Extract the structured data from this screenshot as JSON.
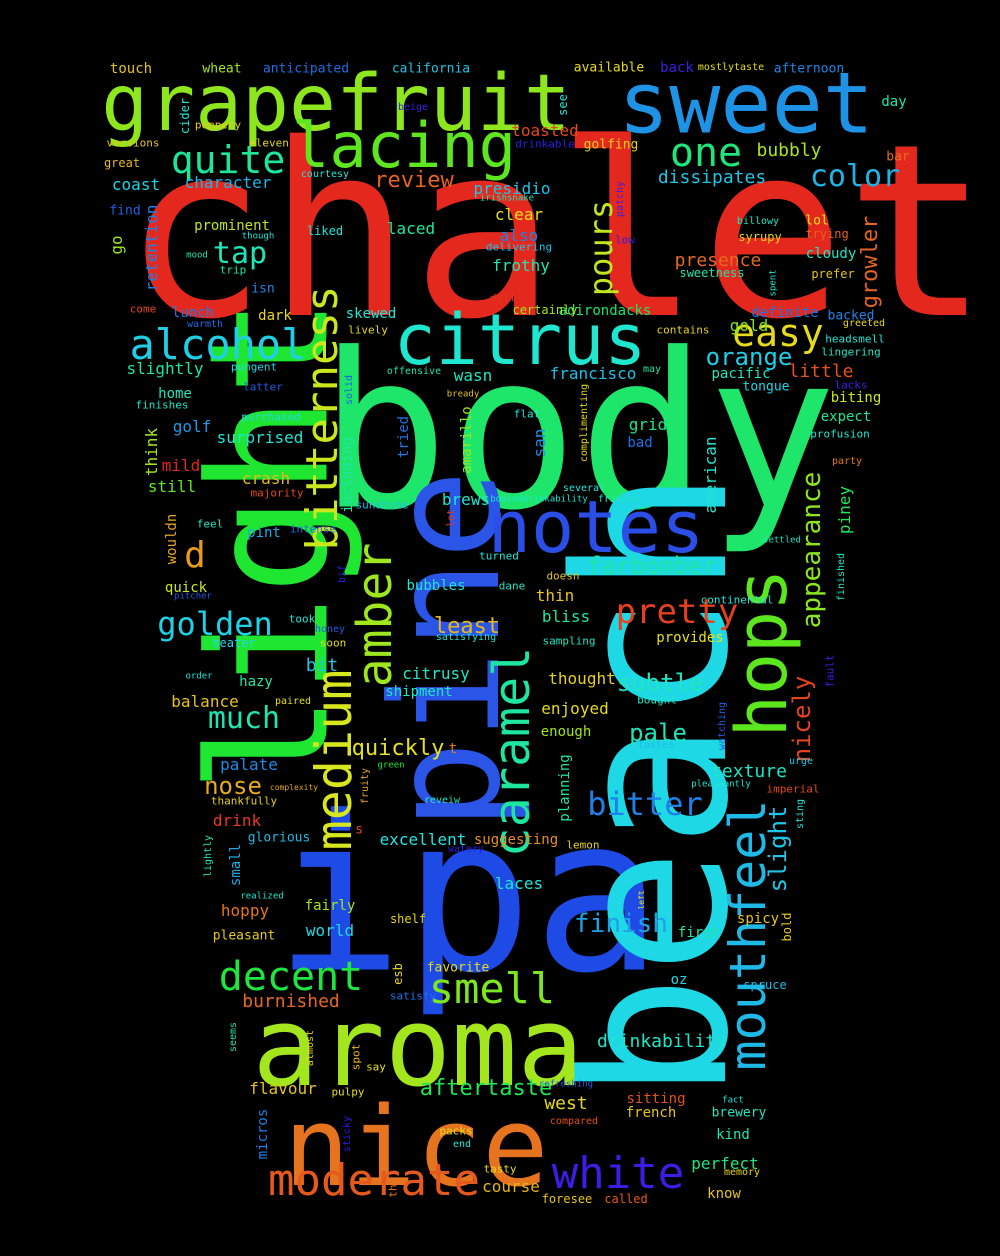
{
  "word_cloud": {
    "background": "#000000",
    "words": [
      {
        "text": "chalet",
        "color": "#e5281e"
      },
      {
        "text": "body",
        "color": "#1ee66a"
      },
      {
        "text": "ipa",
        "color": "#1e4be5"
      },
      {
        "text": "beach",
        "color": "#1ed8e6"
      },
      {
        "text": "light",
        "color": "#1ee631"
      },
      {
        "text": "pine",
        "color": "#2b55e6"
      },
      {
        "text": "aroma",
        "color": "#a4e61e"
      },
      {
        "text": "nice",
        "color": "#e6731e"
      },
      {
        "text": "sweet",
        "color": "#1e93e6"
      },
      {
        "text": "grapefruit",
        "color": "#8ee61e"
      },
      {
        "text": "notes",
        "color": "#2b4fe6"
      },
      {
        "text": "citrus",
        "color": "#1ee6cf"
      },
      {
        "text": "hops",
        "color": "#5be61e"
      },
      {
        "text": "lacing",
        "color": "#5ee61e"
      },
      {
        "text": "medium",
        "color": "#d8e61e"
      },
      {
        "text": "caramel",
        "color": "#1ee69e"
      },
      {
        "text": "mouthfeel",
        "color": "#1eb9e6"
      },
      {
        "text": "amber",
        "color": "#9ee61e"
      },
      {
        "text": "bitterness",
        "color": "#cce61e"
      },
      {
        "text": "alcohol",
        "color": "#1ecfe6"
      },
      {
        "text": "moderate",
        "color": "#e6591e"
      },
      {
        "text": "white",
        "color": "#3a1ee6"
      },
      {
        "text": "decent",
        "color": "#1ee63f"
      },
      {
        "text": "smell",
        "color": "#7ce61e"
      },
      {
        "text": "quite",
        "color": "#1ee699"
      },
      {
        "text": "one",
        "color": "#1ee67a"
      },
      {
        "text": "easy",
        "color": "#e6da1e"
      },
      {
        "text": "pretty",
        "color": "#e6411e"
      },
      {
        "text": "golden",
        "color": "#1ed1e6"
      },
      {
        "text": "bitter",
        "color": "#1e81e6"
      },
      {
        "text": "d",
        "color": "#e69b1e"
      },
      {
        "text": "much",
        "color": "#1ee6b0"
      },
      {
        "text": "tap",
        "color": "#1ee6b7"
      },
      {
        "text": "pours",
        "color": "#bfe61e"
      },
      {
        "text": "appearance",
        "color": "#8ce61e"
      },
      {
        "text": "color",
        "color": "#1eb4e6"
      },
      {
        "text": "farbomber",
        "color": "#1ee6a6"
      },
      {
        "text": "finish",
        "color": "#1ea2e6"
      },
      {
        "text": "subtle",
        "color": "#1ee6bf"
      },
      {
        "text": "pale",
        "color": "#1ee6ba"
      },
      {
        "text": "nose",
        "color": "#e6ac1e"
      },
      {
        "text": "orange",
        "color": "#1ecde6"
      },
      {
        "text": "nicely",
        "color": "#e6441e"
      },
      {
        "text": "slight",
        "color": "#1ec5e6"
      },
      {
        "text": "aftertaste",
        "color": "#1ee654"
      },
      {
        "text": "growler",
        "color": "#e6651e"
      },
      {
        "text": "review",
        "color": "#e6621e"
      },
      {
        "text": "least",
        "color": "#e6b61e"
      },
      {
        "text": "quickly",
        "color": "#e6e11e"
      },
      {
        "text": "drinkability",
        "color": "#1ee6ca"
      },
      {
        "text": "west",
        "color": "#e6d81e"
      },
      {
        "text": "texture",
        "color": "#1ee6c2"
      },
      {
        "text": "burnished",
        "color": "#e6681e"
      },
      {
        "text": "presence",
        "color": "#e6691e"
      },
      {
        "text": "little",
        "color": "#e6501e"
      },
      {
        "text": "dissipates",
        "color": "#1ec4e6"
      },
      {
        "text": "bubbly",
        "color": "#a9e61e"
      },
      {
        "text": "coast",
        "color": "#1ed5e6"
      },
      {
        "text": "character",
        "color": "#1eb4e6"
      },
      {
        "text": "toasted",
        "color": "#e6491e"
      },
      {
        "text": "presidio",
        "color": "#1ec3e6"
      },
      {
        "text": "frothy",
        "color": "#1ee6b5"
      },
      {
        "text": "clear",
        "color": "#e6e31e"
      },
      {
        "text": "also",
        "color": "#1e83e6"
      },
      {
        "text": "laced",
        "color": "#1ee69e"
      },
      {
        "text": "prominent",
        "color": "#bce61e"
      },
      {
        "text": "go",
        "color": "#a0e61e"
      },
      {
        "text": "retention",
        "color": "#1e80e6"
      },
      {
        "text": "skewed",
        "color": "#1ee6d9"
      },
      {
        "text": "lunch",
        "color": "#1e79e6"
      },
      {
        "text": "dark",
        "color": "#e6d51e"
      },
      {
        "text": "slightly",
        "color": "#1ee6a1"
      },
      {
        "text": "gold",
        "color": "#7be61e"
      },
      {
        "text": "definite",
        "color": "#1e73e6"
      },
      {
        "text": "cloudy",
        "color": "#1ee6c9"
      },
      {
        "text": "wasn",
        "color": "#1ee6c4"
      },
      {
        "text": "francisco",
        "color": "#1ec0e6"
      },
      {
        "text": "adirondacks",
        "color": "#1ee666"
      },
      {
        "text": "pacific",
        "color": "#1ee6bf"
      },
      {
        "text": "home",
        "color": "#1ee6bb"
      },
      {
        "text": "golf",
        "color": "#1e97e6"
      },
      {
        "text": "surprised",
        "color": "#1ee6d5"
      },
      {
        "text": "think",
        "color": "#a4e61e"
      },
      {
        "text": "mild",
        "color": "#e6251e"
      },
      {
        "text": "still",
        "color": "#5ee61e"
      },
      {
        "text": "crash",
        "color": "#e6b91e"
      },
      {
        "text": "grid",
        "color": "#1ee688"
      },
      {
        "text": "bad",
        "color": "#1e72e6"
      },
      {
        "text": "expect",
        "color": "#1ee68d"
      },
      {
        "text": "biting",
        "color": "#cfe61e"
      },
      {
        "text": "american",
        "color": "#1ee6d0"
      },
      {
        "text": "piney",
        "color": "#1ee658"
      },
      {
        "text": "brews",
        "color": "#1ee6ce"
      },
      {
        "text": "including",
        "color": "#1ee6a0"
      },
      {
        "text": "tried",
        "color": "#1e75e6"
      },
      {
        "text": "amarillo",
        "color": "#97e61e"
      },
      {
        "text": "san",
        "color": "#1e8de6"
      },
      {
        "text": "wouldn",
        "color": "#e6a41e"
      },
      {
        "text": "pint",
        "color": "#1ea9e6"
      },
      {
        "text": "quick",
        "color": "#cce61e"
      },
      {
        "text": "thin",
        "color": "#e6c61e"
      },
      {
        "text": "bliss",
        "color": "#1ee69e"
      },
      {
        "text": "bubbles",
        "color": "#1ee6d3"
      },
      {
        "text": "bit",
        "color": "#1ec6e6"
      },
      {
        "text": "citrusy",
        "color": "#1ee6c5"
      },
      {
        "text": "balance",
        "color": "#e6c21e"
      },
      {
        "text": "hazy",
        "color": "#1ee6a5"
      },
      {
        "text": "shipment",
        "color": "#1ee6c0"
      },
      {
        "text": "enjoyed",
        "color": "#e6d91e"
      },
      {
        "text": "thought",
        "color": "#e6d11e"
      },
      {
        "text": "provides",
        "color": "#e6e11e"
      },
      {
        "text": "enough",
        "color": "#9ee61e"
      },
      {
        "text": "palate",
        "color": "#1e8be6"
      },
      {
        "text": "drink",
        "color": "#e6391e"
      },
      {
        "text": "small",
        "color": "#1ea9e6"
      },
      {
        "text": "hoppy",
        "color": "#e6731e"
      },
      {
        "text": "excellent",
        "color": "#1ee6e3"
      },
      {
        "text": "suggesting",
        "color": "#e68f1e"
      },
      {
        "text": "planning",
        "color": "#1ee69c"
      },
      {
        "text": "laces",
        "color": "#1ee6d5"
      },
      {
        "text": "fairly",
        "color": "#a5e61e"
      },
      {
        "text": "world",
        "color": "#1ed9e6"
      },
      {
        "text": "pleasant",
        "color": "#e6ca1e"
      },
      {
        "text": "flavour",
        "color": "#e6c21e"
      },
      {
        "text": "micros",
        "color": "#1e82e6"
      },
      {
        "text": "sitting",
        "color": "#e6501e"
      },
      {
        "text": "french",
        "color": "#e6c51e"
      },
      {
        "text": "brewery",
        "color": "#1ee6c3"
      },
      {
        "text": "kind",
        "color": "#1ee6b1"
      },
      {
        "text": "perfect",
        "color": "#1ee67a"
      },
      {
        "text": "course",
        "color": "#e6b41e"
      },
      {
        "text": "know",
        "color": "#e6c11e"
      },
      {
        "text": "first",
        "color": "#1ee6a4"
      },
      {
        "text": "spicy",
        "color": "#e6c31e"
      },
      {
        "text": "bold",
        "color": "#e6c61e"
      },
      {
        "text": "oz",
        "color": "#1ed6e6"
      },
      {
        "text": "spruce",
        "color": "#1ebce6"
      },
      {
        "text": "favorite",
        "color": "#e6da1e"
      },
      {
        "text": "satisfy",
        "color": "#1e74e6"
      },
      {
        "text": "esb",
        "color": "#e6d91e"
      },
      {
        "text": "shelf",
        "color": "#e6d51e"
      },
      {
        "text": "touch",
        "color": "#e6c11e"
      },
      {
        "text": "wheat",
        "color": "#a1e61e"
      },
      {
        "text": "anticipated",
        "color": "#1e6ee6"
      },
      {
        "text": "california",
        "color": "#1ec3e6"
      },
      {
        "text": "available",
        "color": "#e6da1e"
      },
      {
        "text": "back",
        "color": "#3a1ee6"
      },
      {
        "text": "mostlytaste",
        "color": "#e6de1e"
      },
      {
        "text": "afternoon",
        "color": "#1e84e6"
      },
      {
        "text": "day",
        "color": "#1ee6b0"
      },
      {
        "text": "bar",
        "color": "#e66c1e"
      },
      {
        "text": "cider",
        "color": "#1ee6d3"
      },
      {
        "text": "see",
        "color": "#1ee6d3"
      },
      {
        "text": "peppery",
        "color": "#e6c91e"
      },
      {
        "text": "versions",
        "color": "#e6c41e"
      },
      {
        "text": "eleven",
        "color": "#e6d61e"
      },
      {
        "text": "drinkable",
        "color": "#2a1ee6"
      },
      {
        "text": "golfing",
        "color": "#e6d21e"
      },
      {
        "text": "great",
        "color": "#e6b81e"
      },
      {
        "text": "courtesy",
        "color": "#1ee6d6"
      },
      {
        "text": "irishsnake",
        "color": "#1ee6b8"
      },
      {
        "text": "beige",
        "color": "#3c1ee6"
      },
      {
        "text": "find",
        "color": "#1e62e6"
      },
      {
        "text": "though",
        "color": "#1ee6de"
      },
      {
        "text": "liked",
        "color": "#1ee6d9"
      },
      {
        "text": "delivering",
        "color": "#1ec3e6"
      },
      {
        "text": "patchy",
        "color": "#3a1ee6"
      },
      {
        "text": "low",
        "color": "#2d1ee6"
      },
      {
        "text": "billowy",
        "color": "#1ee6c1"
      },
      {
        "text": "trying",
        "color": "#e6631e"
      },
      {
        "text": "lol",
        "color": "#e6e11e"
      },
      {
        "text": "syrupy",
        "color": "#e6d71e"
      },
      {
        "text": "mood",
        "color": "#1ee6b3"
      },
      {
        "text": "trip",
        "color": "#1ee6a9"
      },
      {
        "text": "sweetness",
        "color": "#1ee6ab"
      },
      {
        "text": "prefer",
        "color": "#e6c11e"
      },
      {
        "text": "spent",
        "color": "#1ee6d3"
      },
      {
        "text": "isn",
        "color": "#1e86e6"
      },
      {
        "text": "dull",
        "color": "#e6361e"
      },
      {
        "text": "certainly",
        "color": "#a4e61e"
      },
      {
        "text": "backed",
        "color": "#1e84e6"
      },
      {
        "text": "greeted",
        "color": "#e6d91e"
      },
      {
        "text": "come",
        "color": "#e6461e"
      },
      {
        "text": "warmth",
        "color": "#1e6de6"
      },
      {
        "text": "lively",
        "color": "#e6da1e"
      },
      {
        "text": "contains",
        "color": "#e6d01e"
      },
      {
        "text": "headsmell",
        "color": "#1ee6d9"
      },
      {
        "text": "lingering",
        "color": "#1ee6c4"
      },
      {
        "text": "pungent",
        "color": "#1ed9e6"
      },
      {
        "text": "offensive",
        "color": "#1ee6a6"
      },
      {
        "text": "may",
        "color": "#1ee69b"
      },
      {
        "text": "tongue",
        "color": "#1ed8e6"
      },
      {
        "text": "latter",
        "color": "#1e5de6"
      },
      {
        "text": "solid",
        "color": "#1e62e6"
      },
      {
        "text": "lacks",
        "color": "#3f1ee6"
      },
      {
        "text": "finishes",
        "color": "#1ee6c8"
      },
      {
        "text": "bready",
        "color": "#e6c41e"
      },
      {
        "text": "purchased",
        "color": "#1ed9e6"
      },
      {
        "text": "flat",
        "color": "#1ee6d6"
      },
      {
        "text": "complimenting",
        "color": "#e6d81e"
      },
      {
        "text": "profusion",
        "color": "#1ee6d1"
      },
      {
        "text": "party",
        "color": "#e6791e"
      },
      {
        "text": "majority",
        "color": "#e6441e"
      },
      {
        "text": "several",
        "color": "#1ee6d9"
      },
      {
        "text": "friends",
        "color": "#1ee6c4"
      },
      {
        "text": "bodieddrinkability",
        "color": "#1ee6d2"
      },
      {
        "text": "sunshine",
        "color": "#1ec0e6"
      },
      {
        "text": "lot",
        "color": "#e6381e"
      },
      {
        "text": "feel",
        "color": "#1ee6bf"
      },
      {
        "text": "intense",
        "color": "#1e6de6"
      },
      {
        "text": "turned",
        "color": "#1ee6da"
      },
      {
        "text": "dane",
        "color": "#1ee6c6"
      },
      {
        "text": "doesn",
        "color": "#e6c11e"
      },
      {
        "text": "settled",
        "color": "#1ee6c3"
      },
      {
        "text": "finished",
        "color": "#1ee6c9"
      },
      {
        "text": "bif",
        "color": "#2b1ee6"
      },
      {
        "text": "pitcher",
        "color": "#1e5ce6"
      },
      {
        "text": "took",
        "color": "#1ee6d6"
      },
      {
        "text": "honey",
        "color": "#1e5ce6"
      },
      {
        "text": "soon",
        "color": "#e6da1e"
      },
      {
        "text": "satisfying",
        "color": "#1ee6d5"
      },
      {
        "text": "sampling",
        "color": "#1ee6c1"
      },
      {
        "text": "continental",
        "color": "#1ee6dc"
      },
      {
        "text": "beater",
        "color": "#1ed8e6"
      },
      {
        "text": "order",
        "color": "#1ee6e3"
      },
      {
        "text": "paired",
        "color": "#e6de1e"
      },
      {
        "text": "bought",
        "color": "#1ee6c7"
      },
      {
        "text": "fault",
        "color": "#3a1ee6"
      },
      {
        "text": "watching",
        "color": "#1e5de6"
      },
      {
        "text": "tastes",
        "color": "#1ebee6"
      },
      {
        "text": "t",
        "color": "#e6761e"
      },
      {
        "text": "green",
        "color": "#1ee631"
      },
      {
        "text": "urge",
        "color": "#1ec8e6"
      },
      {
        "text": "complexity",
        "color": "#e6a71e"
      },
      {
        "text": "pleaseantly",
        "color": "#1ee6cf"
      },
      {
        "text": "imperial",
        "color": "#e6451e"
      },
      {
        "text": "thankfully",
        "color": "#e6d11e"
      },
      {
        "text": "fruity",
        "color": "#e6a61e"
      },
      {
        "text": "reveiw",
        "color": "#1ee6bc"
      },
      {
        "text": "sting",
        "color": "#1ee6d2"
      },
      {
        "text": "glorious",
        "color": "#1eb8e6"
      },
      {
        "text": "s",
        "color": "#e6491e"
      },
      {
        "text": "lightly",
        "color": "#1ee6bb"
      },
      {
        "text": "lemon",
        "color": "#e6d41e"
      },
      {
        "text": "watery",
        "color": "#2b1ee6"
      },
      {
        "text": "realized",
        "color": "#1ee6d2"
      },
      {
        "text": "left",
        "color": "#e6e11e"
      },
      {
        "text": "seems",
        "color": "#1ee6a5"
      },
      {
        "text": "almost",
        "color": "#e6d31e"
      },
      {
        "text": "spot",
        "color": "#e6b51e"
      },
      {
        "text": "say",
        "color": "#e6e11e"
      },
      {
        "text": "pulpy",
        "color": "#e6df1e"
      },
      {
        "text": "refreshing",
        "color": "#1e5ee6"
      },
      {
        "text": "fact",
        "color": "#1ee6dc"
      },
      {
        "text": "sticky",
        "color": "#2c1ee6"
      },
      {
        "text": "packs",
        "color": "#e6e01e"
      },
      {
        "text": "compared",
        "color": "#e6501e"
      },
      {
        "text": "end",
        "color": "#1ee6d4"
      },
      {
        "text": "tasty",
        "color": "#e6de1e"
      },
      {
        "text": "th",
        "color": "#e6781e"
      },
      {
        "text": "memory",
        "color": "#e6d71e"
      },
      {
        "text": "foresee",
        "color": "#e6c41e"
      },
      {
        "text": "called",
        "color": "#e6591e"
      }
    ]
  }
}
